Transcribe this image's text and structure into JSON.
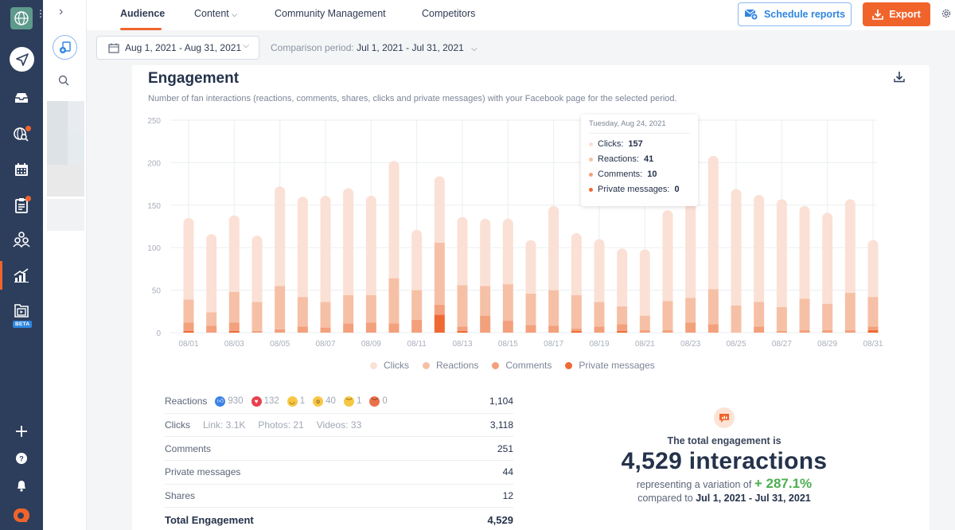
{
  "rail": {
    "items": [
      {
        "name": "publish",
        "icon": "paper-plane-icon"
      },
      {
        "name": "inbox",
        "icon": "inbox-icon"
      },
      {
        "name": "listening",
        "icon": "globe-search-icon"
      },
      {
        "name": "calendar",
        "icon": "calendar-icon"
      },
      {
        "name": "tasks",
        "icon": "clipboard-icon"
      },
      {
        "name": "team",
        "icon": "users-icon"
      },
      {
        "name": "analytics",
        "icon": "chart-icon"
      },
      {
        "name": "video",
        "icon": "video-folder-icon"
      }
    ],
    "beta_label": "BETA",
    "bottom": [
      "plus-icon",
      "help-icon",
      "bell-icon",
      "brand-logo"
    ]
  },
  "topnav": {
    "tabs": [
      {
        "label": "Audience",
        "active": true
      },
      {
        "label": "Content",
        "dropdown": true
      },
      {
        "label": "Community Management"
      },
      {
        "label": "Competitors"
      }
    ],
    "schedule_label": "Schedule reports",
    "export_label": "Export"
  },
  "filters": {
    "date_range": "Aug 1, 2021 - Aug 31, 2021",
    "comparison_label": "Comparison period:",
    "comparison_range": "Jul 1, 2021 - Jul 31, 2021"
  },
  "card": {
    "title": "Engagement",
    "subtitle": "Number of fan interactions (reactions, comments, shares, clicks and private messages) with your Facebook page for the selected period."
  },
  "colors": {
    "accent": "#f0642c",
    "clicks": "#fbe0d5",
    "reactions": "#f6c0a6",
    "comments": "#f3a07c",
    "private_messages": "#ef6a33",
    "positive": "#4caf50"
  },
  "chart_data": {
    "type": "bar",
    "stacked": true,
    "title": "Engagement",
    "ylim": [
      0,
      250
    ],
    "yticks": [
      0,
      50,
      100,
      150,
      200,
      250
    ],
    "grid": true,
    "legend_position": "bottom",
    "categories": [
      "08/01",
      "08/02",
      "08/03",
      "08/04",
      "08/05",
      "08/06",
      "08/07",
      "08/08",
      "08/09",
      "08/10",
      "08/11",
      "08/12",
      "08/13",
      "08/14",
      "08/15",
      "08/16",
      "08/17",
      "08/18",
      "08/19",
      "08/20",
      "08/21",
      "08/22",
      "08/23",
      "08/24",
      "08/25",
      "08/26",
      "08/27",
      "08/28",
      "08/29",
      "08/30",
      "08/31"
    ],
    "xtick_labels": [
      "08/01",
      "08/03",
      "08/05",
      "08/07",
      "08/09",
      "08/11",
      "08/13",
      "08/15",
      "08/17",
      "08/19",
      "08/21",
      "08/23",
      "08/25",
      "08/27",
      "08/29",
      "08/31"
    ],
    "series": [
      {
        "name": "Private messages",
        "values": [
          2,
          0,
          2,
          0,
          0,
          0,
          0,
          0,
          0,
          0,
          0,
          21,
          2,
          0,
          0,
          0,
          0,
          2,
          0,
          2,
          0,
          0,
          0,
          0,
          0,
          0,
          0,
          0,
          0,
          0,
          3
        ]
      },
      {
        "name": "Comments",
        "values": [
          10,
          8,
          10,
          2,
          4,
          7,
          6,
          11,
          12,
          11,
          15,
          12,
          5,
          20,
          14,
          9,
          8,
          3,
          7,
          8,
          3,
          3,
          12,
          10,
          0,
          7,
          2,
          3,
          3,
          3,
          4
        ]
      },
      {
        "name": "Reactions",
        "values": [
          27,
          16,
          36,
          34,
          51,
          35,
          30,
          33,
          32,
          53,
          35,
          73,
          49,
          35,
          43,
          37,
          42,
          39,
          29,
          21,
          17,
          34,
          29,
          41,
          32,
          29,
          28,
          37,
          31,
          44,
          35
        ]
      },
      {
        "name": "Clicks",
        "values": [
          96,
          92,
          90,
          78,
          117,
          118,
          125,
          126,
          117,
          138,
          71,
          78,
          80,
          79,
          77,
          63,
          99,
          73,
          74,
          68,
          78,
          107,
          114,
          157,
          137,
          126,
          127,
          109,
          107,
          110,
          67
        ]
      }
    ],
    "legend": [
      "Clicks",
      "Reactions",
      "Comments",
      "Private messages"
    ]
  },
  "tooltip": {
    "date": "Tuesday, Aug 24, 2021",
    "rows": [
      {
        "label": "Clicks:",
        "value": "157"
      },
      {
        "label": "Reactions:",
        "value": "41"
      },
      {
        "label": "Comments:",
        "value": "10"
      },
      {
        "label": "Private messages:",
        "value": "0"
      }
    ]
  },
  "stats": {
    "reactions": {
      "label": "Reactions",
      "value": "1,104",
      "breakdown": [
        {
          "type": "like",
          "count": "930"
        },
        {
          "type": "love",
          "count": "132"
        },
        {
          "type": "haha",
          "count": "1"
        },
        {
          "type": "wow",
          "count": "40"
        },
        {
          "type": "sad",
          "count": "1"
        },
        {
          "type": "angry",
          "count": "0"
        }
      ]
    },
    "clicks": {
      "label": "Clicks",
      "value": "3,118",
      "breakdown": [
        "Link: 3.1K",
        "Photos: 21",
        "Videos: 33"
      ]
    },
    "comments": {
      "label": "Comments",
      "value": "251"
    },
    "private_messages": {
      "label": "Private messages",
      "value": "44"
    },
    "shares": {
      "label": "Shares",
      "value": "12"
    },
    "total": {
      "label": "Total Engagement",
      "value": "4,529"
    }
  },
  "summary": {
    "line1": "The total engagement is",
    "big": "4,529 interactions",
    "variation_prefix": "representing a variation of",
    "variation": "+ 287.1%",
    "compared_prefix": "compared to",
    "compared_range": "Jul 1, 2021 - Jul 31, 2021"
  }
}
